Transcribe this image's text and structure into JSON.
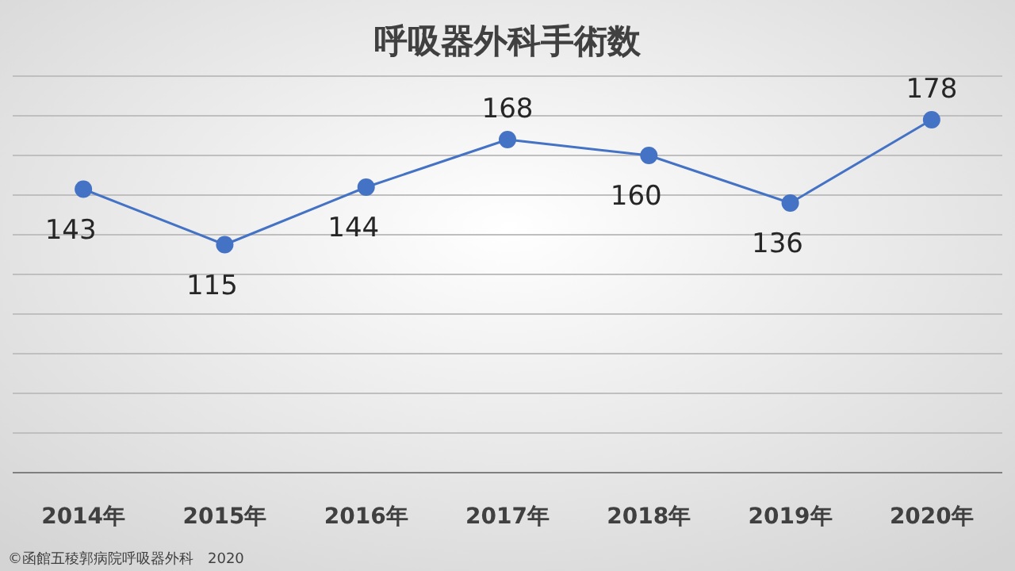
{
  "chart_data": {
    "type": "line",
    "title": "呼吸器外科手術数",
    "categories": [
      "2014年",
      "2015年",
      "2016年",
      "2017年",
      "2018年",
      "2019年",
      "2020年"
    ],
    "series": [
      {
        "color": "#4472c4",
        "values": [
          143,
          115,
          144,
          168,
          160,
          136,
          178
        ]
      }
    ],
    "ylim": [
      0,
      200
    ],
    "yticks": [
      {
        "value": 0,
        "label": null
      },
      {
        "value": 20,
        "label": null
      },
      {
        "value": 40,
        "label": null
      },
      {
        "value": 60,
        "label": null
      },
      {
        "value": 80,
        "label": null
      },
      {
        "value": 100,
        "label": null
      },
      {
        "value": 120,
        "label": null
      },
      {
        "value": 140,
        "label": null
      },
      {
        "value": 160,
        "label": null
      },
      {
        "value": 180,
        "label": null
      },
      {
        "value": 200,
        "label": null
      }
    ],
    "tick_labels": "x",
    "grid": "y",
    "marker": "circle",
    "data_labels": true,
    "annotations": [
      "©函館五稜郭病院呼吸器外科　2020"
    ]
  }
}
